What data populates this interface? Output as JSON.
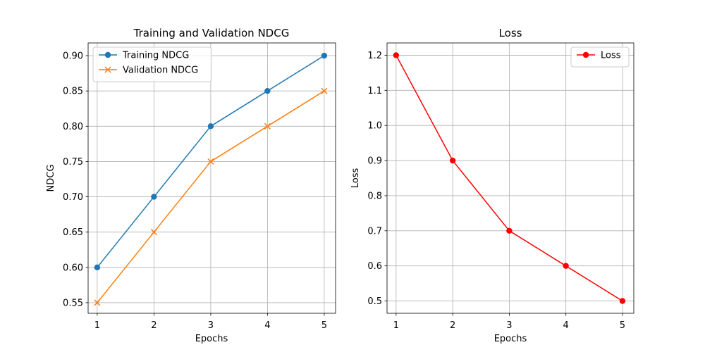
{
  "chart_data": [
    {
      "type": "line",
      "title": "Training and Validation NDCG",
      "xlabel": "Epochs",
      "ylabel": "NDCG",
      "x": [
        1,
        2,
        3,
        4,
        5
      ],
      "xlim": [
        0.84,
        5.2
      ],
      "ylim": [
        0.535,
        0.918
      ],
      "xticks": [
        1,
        2,
        3,
        4,
        5
      ],
      "xtick_labels": [
        "1",
        "2",
        "3",
        "4",
        "5"
      ],
      "yticks": [
        0.55,
        0.6,
        0.65,
        0.7,
        0.75,
        0.8,
        0.85,
        0.9
      ],
      "ytick_labels": [
        "0.55",
        "0.60",
        "0.65",
        "0.70",
        "0.75",
        "0.80",
        "0.85",
        "0.90"
      ],
      "grid": true,
      "legend_position": "top-left",
      "series": [
        {
          "name": "Training NDCG",
          "values": [
            0.6,
            0.7,
            0.8,
            0.85,
            0.9
          ],
          "color": "#1f77b4",
          "marker": "circle"
        },
        {
          "name": "Validation NDCG",
          "values": [
            0.55,
            0.65,
            0.75,
            0.8,
            0.85
          ],
          "color": "#ff7f0e",
          "marker": "x"
        }
      ]
    },
    {
      "type": "line",
      "title": "Loss",
      "xlabel": "Epochs",
      "ylabel": "Loss",
      "x": [
        1,
        2,
        3,
        4,
        5
      ],
      "xlim": [
        0.84,
        5.2
      ],
      "ylim": [
        0.465,
        1.235
      ],
      "xticks": [
        1,
        2,
        3,
        4,
        5
      ],
      "xtick_labels": [
        "1",
        "2",
        "3",
        "4",
        "5"
      ],
      "yticks": [
        0.5,
        0.6,
        0.7,
        0.8,
        0.9,
        1.0,
        1.1,
        1.2
      ],
      "ytick_labels": [
        "0.5",
        "0.6",
        "0.7",
        "0.8",
        "0.9",
        "1.0",
        "1.1",
        "1.2"
      ],
      "grid": true,
      "legend_position": "top-right",
      "series": [
        {
          "name": "Loss",
          "values": [
            1.2,
            0.9,
            0.7,
            0.6,
            0.5
          ],
          "color": "#ff0000",
          "marker": "circle"
        }
      ]
    }
  ]
}
